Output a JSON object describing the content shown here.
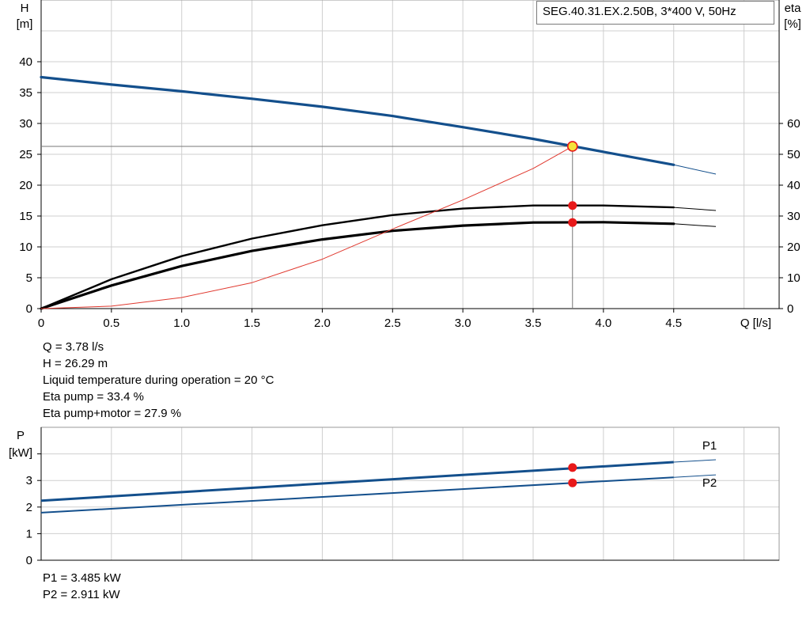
{
  "chart_data": [
    {
      "type": "line",
      "title": "SEG.40.31.EX.2.50B, 3*400 V, 50Hz",
      "xlabel": "Q [l/s]",
      "ylabel_left": [
        "H",
        "[m]"
      ],
      "ylabel_right": [
        "eta",
        "[%]"
      ],
      "xlim": [
        0,
        5.25
      ],
      "ylim_left": [
        0,
        50
      ],
      "ylim_right": [
        0,
        100
      ],
      "grid": true,
      "x_ticks": [
        "0",
        "0.5",
        "1.0",
        "1.5",
        "2.0",
        "2.5",
        "3.0",
        "3.5",
        "4.0",
        "4.5"
      ],
      "y_ticks_left": [
        "0",
        "5",
        "10",
        "15",
        "20",
        "25",
        "30",
        "35",
        "40"
      ],
      "y_ticks_right": [
        "0",
        "10",
        "20",
        "30",
        "40",
        "50",
        "60"
      ],
      "series": [
        {
          "key": "head",
          "axis": "left",
          "color": "#134f8c",
          "x": [
            0,
            0.5,
            1.0,
            1.5,
            2.0,
            2.5,
            3.0,
            3.5,
            4.0,
            4.5
          ],
          "y": [
            37.5,
            36.3,
            35.2,
            34.0,
            32.7,
            31.2,
            29.4,
            27.5,
            25.4,
            23.3
          ],
          "x_ext": [
            4.5,
            4.8
          ],
          "y_ext": [
            23.3,
            21.8
          ]
        },
        {
          "key": "eta_pump",
          "axis": "right",
          "color": "#000000",
          "x": [
            0,
            0.5,
            1.0,
            1.5,
            2.0,
            2.5,
            3.0,
            3.5,
            4.0,
            4.5
          ],
          "y": [
            0,
            9.5,
            17.0,
            22.7,
            27.0,
            30.3,
            32.4,
            33.4,
            33.4,
            32.8
          ],
          "x_ext": [
            4.5,
            4.8
          ],
          "y_ext": [
            32.8,
            31.8
          ]
        },
        {
          "key": "eta_total",
          "axis": "right",
          "color": "#000000",
          "x": [
            0,
            0.5,
            1.0,
            1.5,
            2.0,
            2.5,
            3.0,
            3.5,
            4.0,
            4.5
          ],
          "y": [
            0,
            7.5,
            13.8,
            18.7,
            22.4,
            25.2,
            26.9,
            27.9,
            28.0,
            27.5
          ],
          "x_ext": [
            4.5,
            4.8
          ],
          "y_ext": [
            27.5,
            26.6
          ]
        },
        {
          "key": "npsh",
          "axis": "left",
          "color": "#e0392f",
          "x": [
            0,
            0.5,
            1.0,
            1.5,
            2.0,
            2.5,
            3.0,
            3.5,
            3.78
          ],
          "y": [
            0,
            0.4,
            1.8,
            4.2,
            8.0,
            12.9,
            17.6,
            22.7,
            26.29
          ]
        }
      ],
      "duty_point": {
        "q": 3.78,
        "h": 26.29,
        "eta_pump": 33.4,
        "eta_total": 27.9
      }
    },
    {
      "type": "line",
      "xlabel": "",
      "ylabel": [
        "P",
        "[kW]"
      ],
      "xlim": [
        0,
        5.25
      ],
      "ylim": [
        0,
        4
      ],
      "grid": true,
      "y_ticks": [
        "0",
        "1",
        "2",
        "3"
      ],
      "series": [
        {
          "name": "P1",
          "key": "p1",
          "color": "#134f8c",
          "x": [
            0,
            4.5
          ],
          "y": [
            2.24,
            3.69
          ],
          "x_ext": [
            4.5,
            4.8
          ],
          "y_ext": [
            3.69,
            3.78
          ]
        },
        {
          "name": "P2",
          "key": "p2",
          "color": "#134f8c",
          "x": [
            0,
            4.5
          ],
          "y": [
            1.79,
            3.12
          ],
          "x_ext": [
            4.5,
            4.8
          ],
          "y_ext": [
            3.12,
            3.21
          ]
        }
      ],
      "duty_point": {
        "q": 3.78,
        "p1": 3.485,
        "p2": 2.911
      }
    }
  ],
  "readout_top": [
    "Q = 3.78 l/s",
    "H = 26.29 m",
    "Liquid temperature during operation = 20 °C",
    "Eta pump = 33.4 %",
    "Eta pump+motor = 27.9 %"
  ],
  "readout_bottom": [
    "P1 = 3.485 kW",
    "P2 = 2.911 kW"
  ]
}
